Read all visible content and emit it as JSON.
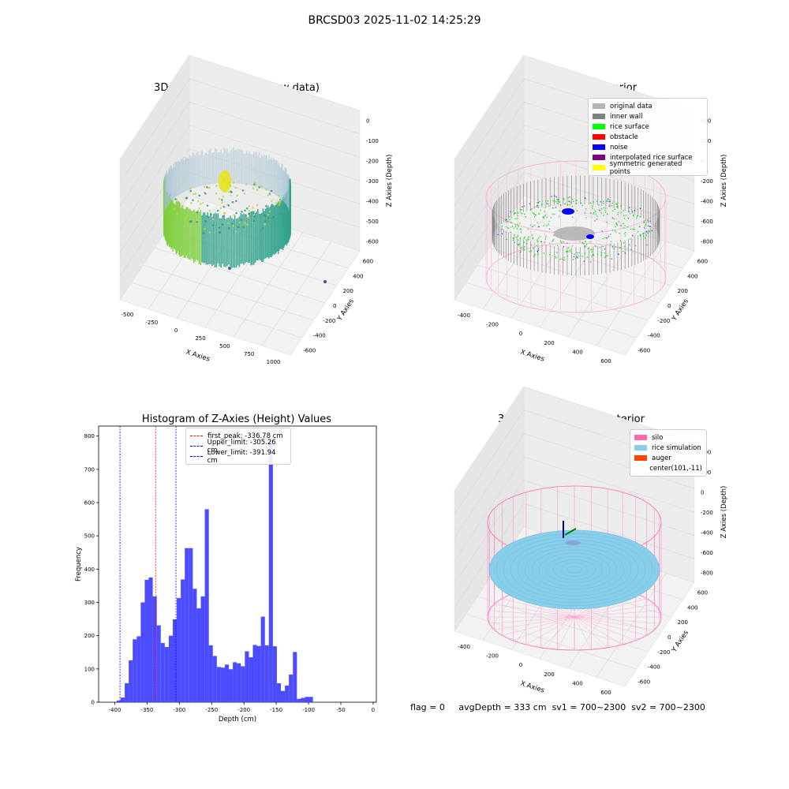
{
  "suptitle": "BRCSD03 2025-11-02 14:25:29",
  "panels": {
    "raw": {
      "title": "3D Plot of Silo Interior(row data)",
      "xlabel": "X Axies",
      "ylabel": "Y Axies",
      "zlabel": "Z Axies (Depth)",
      "xticks": [
        "-500",
        "-250",
        "0",
        "250",
        "500",
        "750",
        "1000"
      ],
      "yticks": [
        "-600",
        "-400",
        "-200",
        "0",
        "200",
        "400",
        "600"
      ],
      "zticks": [
        "0",
        "-100",
        "-200",
        "-300",
        "-400",
        "-500",
        "-600"
      ]
    },
    "classify": {
      "title": "3D classify of Silo Interior",
      "xlabel": "X Axies",
      "ylabel": "Y Axies",
      "zlabel": "Z Axies (Depth)",
      "xticks": [
        "-400",
        "-200",
        "0",
        "200",
        "400",
        "600"
      ],
      "yticks": [
        "-600",
        "-400",
        "-200",
        "0",
        "200",
        "400",
        "600"
      ],
      "zticks": [
        "400",
        "200",
        "0",
        "-200",
        "-400",
        "-600",
        "-800"
      ],
      "legend": [
        {
          "label": "original data",
          "color": "#b4b4b4"
        },
        {
          "label": "inner wall",
          "color": "#808080"
        },
        {
          "label": "rice surface",
          "color": "#00ff00"
        },
        {
          "label": "obstacle",
          "color": "#ff0000"
        },
        {
          "label": "noise",
          "color": "#0000ff"
        },
        {
          "label": "interpolated rice surface",
          "color": "#800080"
        },
        {
          "label": "symmetric generated points",
          "color": "#ffff00"
        }
      ]
    },
    "simulation": {
      "title": "3D simulation of Silo Interior",
      "xlabel": "X Axies",
      "ylabel": "Y Axies",
      "zlabel": "Z Axies (Depth)",
      "xticks": [
        "-400",
        "-200",
        "0",
        "200",
        "400",
        "600"
      ],
      "yticks": [
        "-600",
        "-400",
        "-200",
        "0",
        "200",
        "400",
        "600"
      ],
      "zticks": [
        "400",
        "200",
        "0",
        "-200",
        "-400",
        "-600",
        "-800"
      ],
      "legend": [
        {
          "label": "silo",
          "color": "#ff69b4"
        },
        {
          "label": "rice simulation",
          "color": "#87ceeb"
        },
        {
          "label": "auger",
          "color": "#ff4500"
        },
        {
          "label": "center(101,-11)",
          "color": "#ffffff"
        }
      ]
    }
  },
  "chart_data": {
    "type": "bar",
    "title": "Histogram of Z-Axies (Height) Values",
    "xlabel": "Depth (cm)",
    "ylabel": "Frequency",
    "xlim": [
      -425,
      5
    ],
    "ylim": [
      0,
      830
    ],
    "xticks": [
      -400,
      -350,
      -300,
      -250,
      -200,
      -150,
      -100,
      -50,
      0
    ],
    "yticks": [
      0,
      100,
      200,
      300,
      400,
      500,
      600,
      700,
      800
    ],
    "bar_color": "#4b4bff",
    "bin_width": 6.2,
    "bin_start": -397,
    "values": [
      5,
      14,
      57,
      126,
      189,
      198,
      300,
      368,
      375,
      318,
      231,
      178,
      166,
      200,
      249,
      313,
      369,
      463,
      463,
      341,
      282,
      318,
      580,
      171,
      139,
      106,
      104,
      113,
      99,
      120,
      117,
      108,
      153,
      135,
      172,
      169,
      257,
      171,
      789,
      168,
      57,
      34,
      50,
      83,
      151,
      10,
      13,
      16,
      16
    ],
    "vlines": [
      {
        "label": "first_peak: -336.78 cm",
        "x": -336.78,
        "color": "#ff0000"
      },
      {
        "label": "Upper_limit: -305.26 cm",
        "x": -305.26,
        "color": "#0000ff"
      },
      {
        "label": "Lower_limit: -391.94 cm",
        "x": -391.94,
        "color": "#0000ff"
      }
    ],
    "legend_position": "top-center"
  },
  "status": {
    "flag": "flag = 0",
    "avg": "avgDepth = 333 cm",
    "sv1": "sv1 = 700~2300",
    "sv2": "sv2 = 700~2300"
  }
}
